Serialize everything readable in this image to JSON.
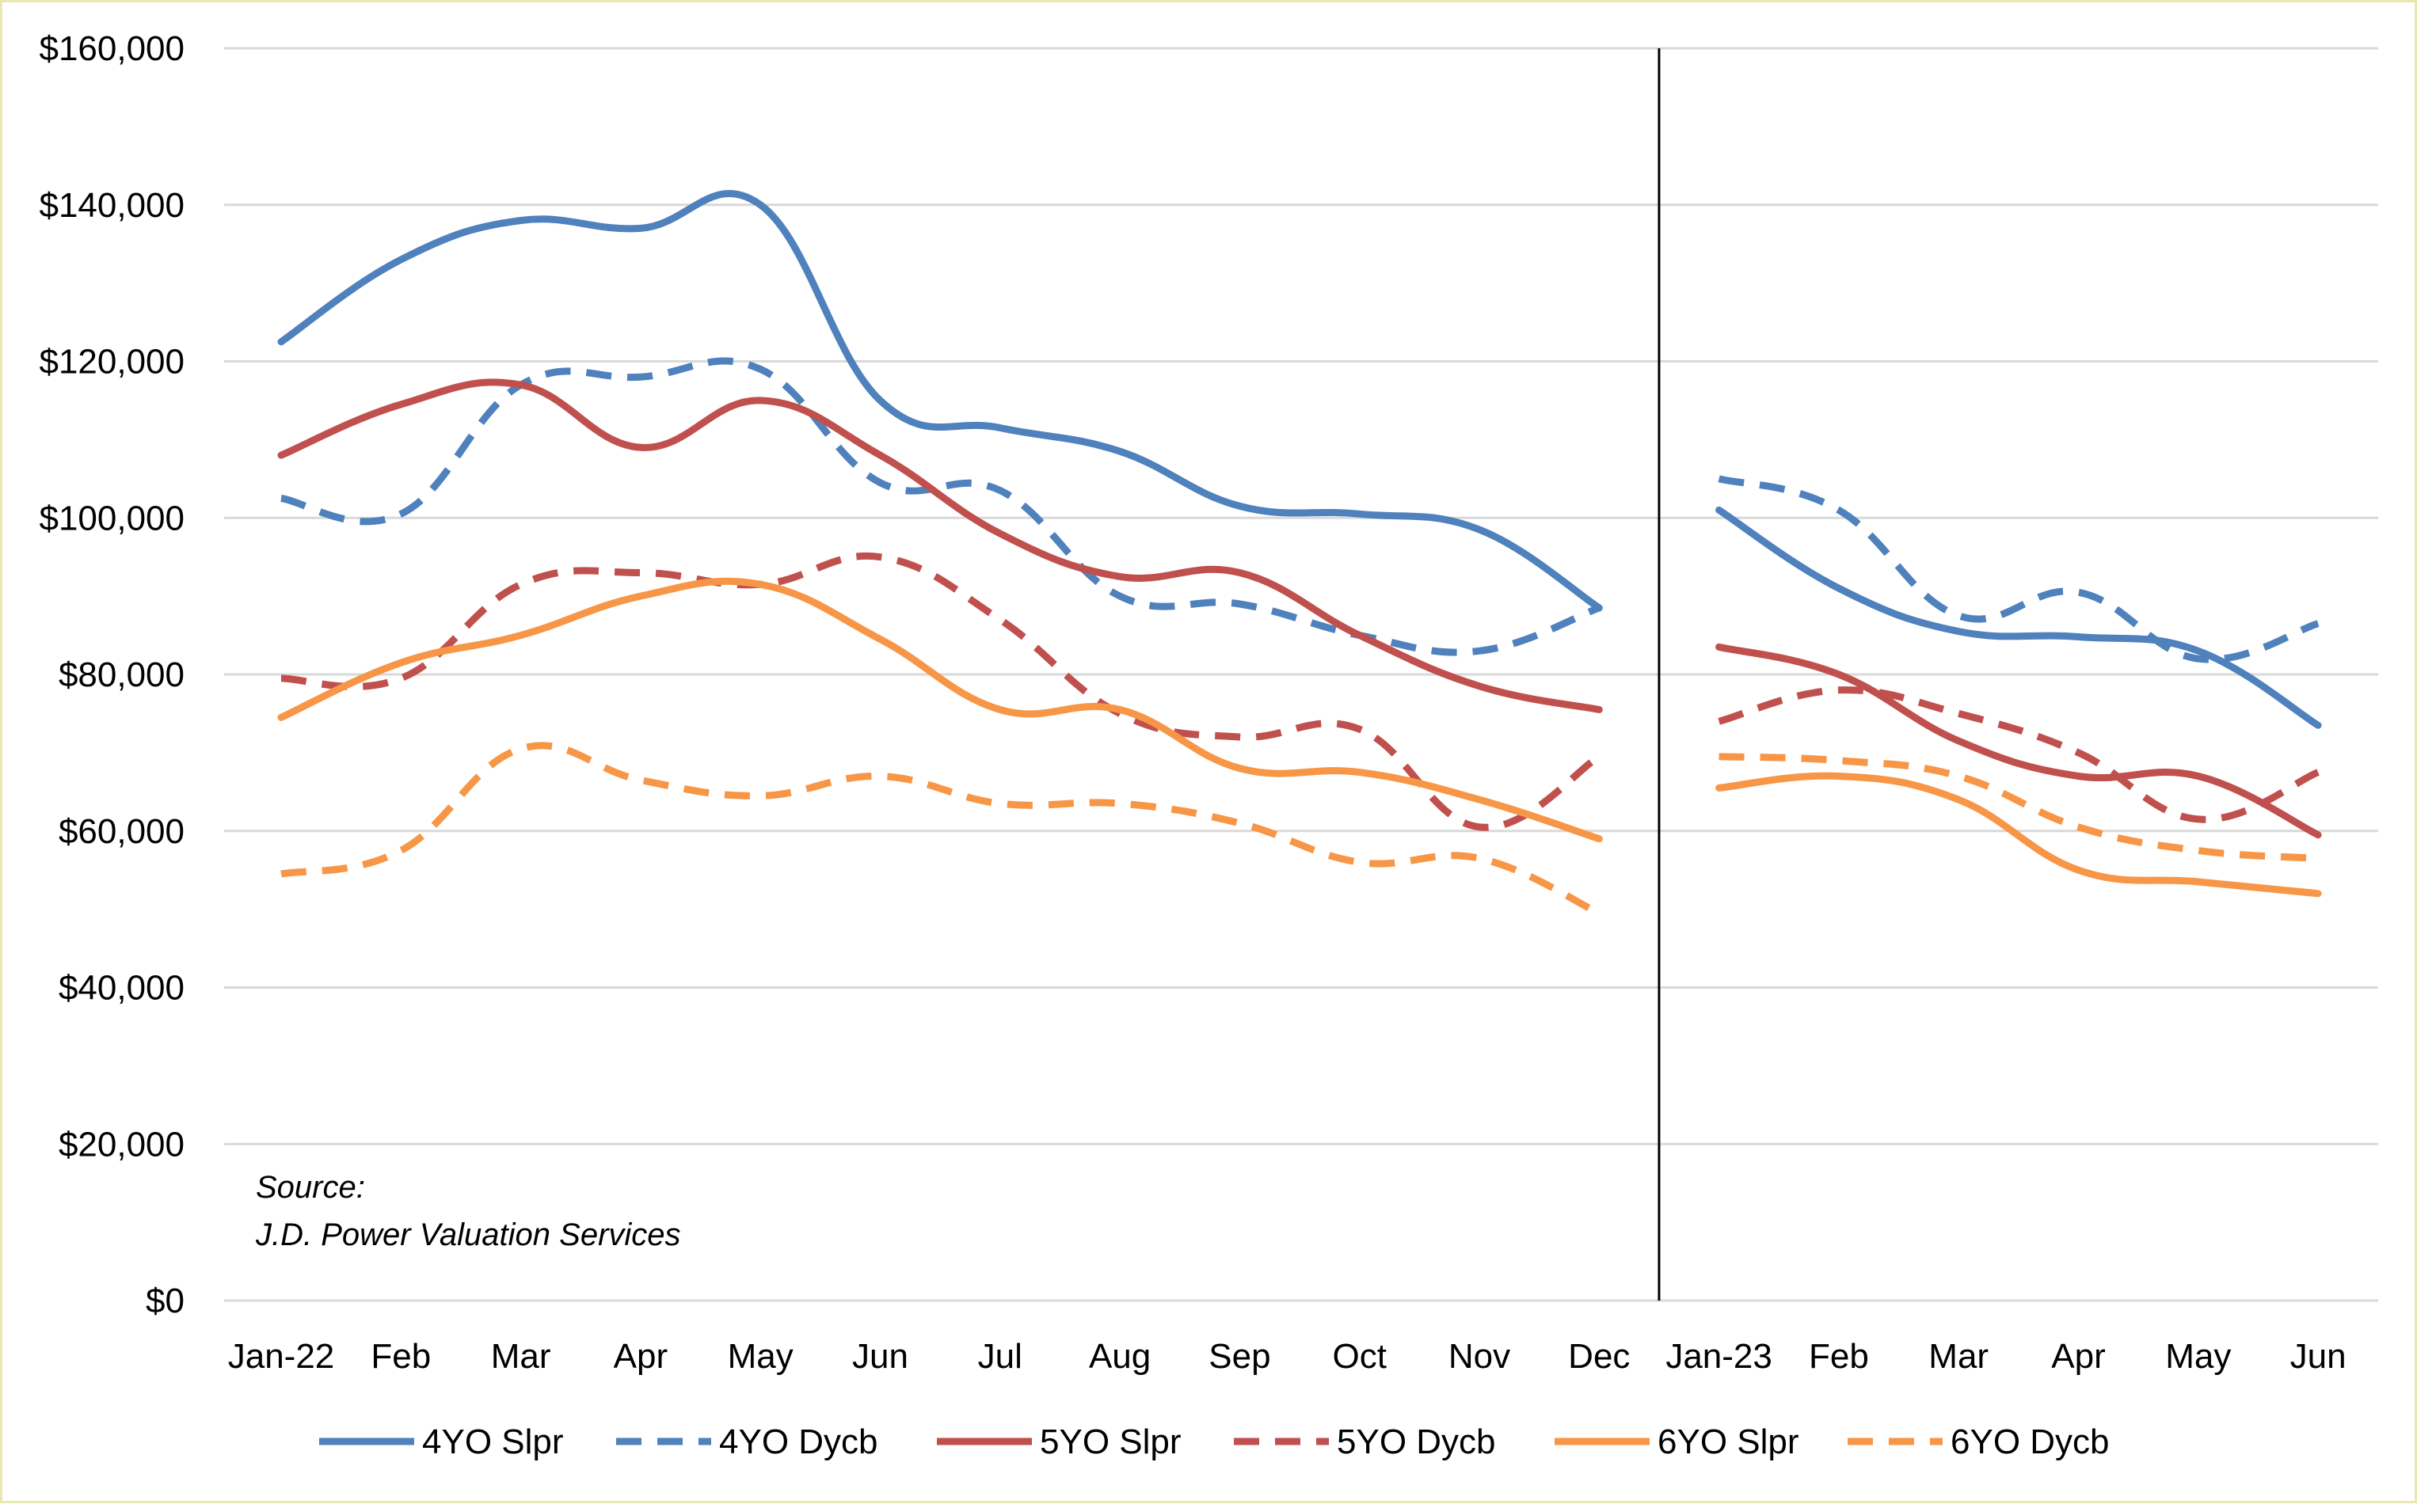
{
  "chart_data": {
    "type": "line",
    "title": "",
    "xlabel": "",
    "ylabel": "",
    "ylim": [
      0,
      160000
    ],
    "yticks": [
      {
        "value": 0,
        "label": "$0"
      },
      {
        "value": 20000,
        "label": "$20,000"
      },
      {
        "value": 40000,
        "label": "$40,000"
      },
      {
        "value": 60000,
        "label": "$60,000"
      },
      {
        "value": 80000,
        "label": "$80,000"
      },
      {
        "value": 100000,
        "label": "$100,000"
      },
      {
        "value": 120000,
        "label": "$120,000"
      },
      {
        "value": 140000,
        "label": "$140,000"
      },
      {
        "value": 160000,
        "label": "$160,000"
      }
    ],
    "categories": [
      "Jan-22",
      "Feb",
      "Mar",
      "Apr",
      "May",
      "Jun",
      "Jul",
      "Aug",
      "Sep",
      "Oct",
      "Nov",
      "Dec",
      "Jan-23",
      "Feb",
      "Mar",
      "Apr",
      "May",
      "Jun"
    ],
    "grid": true,
    "legend_position": "bottom",
    "series": [
      {
        "name": "4YO Slpr",
        "color": "#4f81bd",
        "dashed": false,
        "values": [
          122500,
          133000,
          138000,
          137000,
          140000,
          115000,
          111500,
          108500,
          101500,
          100500,
          98500,
          88500,
          101000,
          91000,
          85500,
          84800,
          83000,
          73500
        ]
      },
      {
        "name": "4YO Dycb",
        "color": "#4f81bd",
        "dashed": true,
        "values": [
          102500,
          100500,
          117000,
          118000,
          119000,
          104500,
          103500,
          90000,
          89000,
          85000,
          83000,
          88500,
          105000,
          101000,
          87500,
          90500,
          82000,
          86500
        ]
      },
      {
        "name": "5YO Slpr",
        "color": "#c0504d",
        "dashed": false,
        "values": [
          108000,
          114500,
          117000,
          109000,
          115000,
          108000,
          98000,
          92500,
          93000,
          85000,
          78500,
          75500,
          83500,
          80000,
          71500,
          67000,
          67000,
          59500
        ]
      },
      {
        "name": "5YO Dycb",
        "color": "#c0504d",
        "dashed": true,
        "values": [
          79500,
          79500,
          91500,
          93000,
          91500,
          95000,
          87000,
          75000,
          72000,
          73000,
          60500,
          69500,
          74000,
          78000,
          75000,
          70000,
          61500,
          67500
        ]
      },
      {
        "name": "6YO Slpr",
        "color": "#f79646",
        "dashed": false,
        "values": [
          74500,
          81500,
          85000,
          90000,
          91500,
          84500,
          75500,
          75500,
          68000,
          67500,
          64000,
          59000,
          65500,
          67000,
          64000,
          55000,
          53500,
          52000
        ]
      },
      {
        "name": "6YO Dycb",
        "color": "#f79646",
        "dashed": true,
        "values": [
          54500,
          57500,
          70500,
          66500,
          64500,
          67000,
          63500,
          63500,
          61000,
          56000,
          56500,
          49500,
          69500,
          69000,
          67000,
          60500,
          57500,
          56500
        ]
      }
    ],
    "annotation": {
      "source_line1": "Source:",
      "source_line2": "J.D. Power Valuation Services"
    }
  }
}
